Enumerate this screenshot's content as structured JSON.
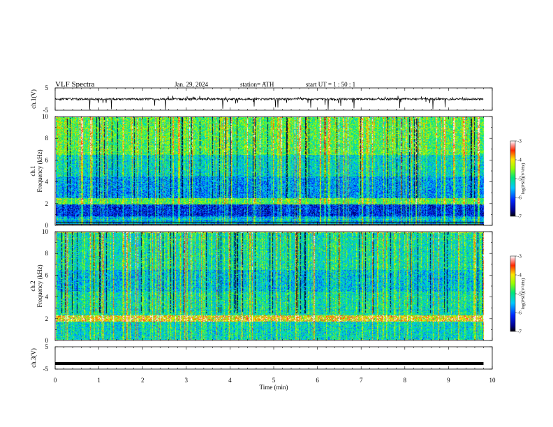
{
  "header": {
    "title": "VLF  Spectra",
    "date": "Jan. 29, 2024",
    "station": "station= ATH",
    "start_ut": "start  UT  =    1  : 50 : 1"
  },
  "chart_data": [
    {
      "type": "line",
      "name": "ch1-waveform",
      "ylabel": "ch.1(V)",
      "ylim": [
        -5,
        5
      ],
      "yticks": [
        "5",
        "-5"
      ],
      "xlim": [
        0,
        10
      ],
      "x_end": 9.8,
      "baseline": 0,
      "spike_range": [
        -2,
        1.5
      ]
    },
    {
      "type": "heatmap",
      "name": "ch1-spectrogram",
      "ylabel_top": "ch.1",
      "ylabel": "Frequency  (kHz)",
      "ylim": [
        0,
        10
      ],
      "yticks": [
        "0",
        "2",
        "4",
        "6",
        "8",
        "10"
      ],
      "xlim": [
        0,
        10
      ],
      "x_end": 9.8,
      "colorbar": {
        "label": "log(PSD)(V²/Hz)",
        "range": [
          -7,
          -3
        ],
        "ticks": [
          "-3",
          "-4",
          "-5",
          "-6",
          "-7"
        ]
      }
    },
    {
      "type": "heatmap",
      "name": "ch2-spectrogram",
      "ylabel_top": "ch.2",
      "ylabel": "Frequency  (kHz)",
      "ylim": [
        0,
        10
      ],
      "yticks": [
        "0",
        "2",
        "4",
        "6",
        "8",
        "10"
      ],
      "xlim": [
        0,
        10
      ],
      "x_end": 9.8,
      "colorbar": {
        "label": "log(PSD)(V²/Hz)",
        "range": [
          -7,
          -3
        ],
        "ticks": [
          "-3",
          "-4",
          "-5",
          "-6",
          "-7"
        ]
      }
    },
    {
      "type": "line",
      "name": "ch3-waveform",
      "ylabel": "ch.3(V)",
      "ylim": [
        -5,
        5
      ],
      "yticks": [
        "5",
        "-5"
      ],
      "xlim": [
        0,
        10
      ],
      "x_end": 9.8,
      "baseline": -2.5
    }
  ],
  "xaxis": {
    "label": "Time  (min)",
    "ticks": [
      "0",
      "1",
      "2",
      "3",
      "4",
      "5",
      "6",
      "7",
      "8",
      "9",
      "10"
    ]
  }
}
